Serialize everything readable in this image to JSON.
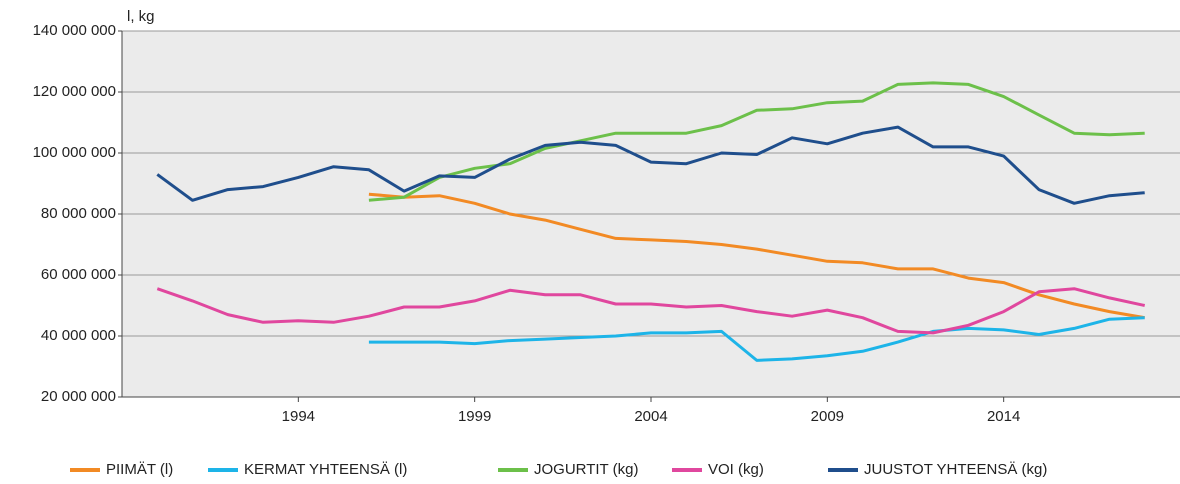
{
  "chart_data": {
    "type": "line",
    "y_axis_label": "l, kg",
    "x": [
      1990,
      1991,
      1992,
      1993,
      1994,
      1995,
      1996,
      1997,
      1998,
      1999,
      2000,
      2001,
      2002,
      2003,
      2004,
      2005,
      2006,
      2007,
      2008,
      2009,
      2010,
      2011,
      2012,
      2013,
      2014,
      2015,
      2016,
      2017,
      2018
    ],
    "xlim": [
      1989,
      2019
    ],
    "xticks": [
      1994,
      1999,
      2004,
      2009,
      2014
    ],
    "ylim": [
      20000000,
      140000000
    ],
    "yticks": [
      {
        "value": 20000000,
        "label": "20 000 000"
      },
      {
        "value": 40000000,
        "label": "40 000 000"
      },
      {
        "value": 60000000,
        "label": "60 000 000"
      },
      {
        "value": 80000000,
        "label": "80 000 000"
      },
      {
        "value": 100000000,
        "label": "100 000 000"
      },
      {
        "value": 120000000,
        "label": "120 000 000"
      },
      {
        "value": 140000000,
        "label": "140 000 000"
      }
    ],
    "grid": true,
    "legend": "bottom",
    "series": [
      {
        "name": "PIIMÄT (l)",
        "color": "#f28a24",
        "values": [
          null,
          null,
          null,
          null,
          null,
          null,
          86500000,
          85500000,
          86000000,
          83500000,
          80000000,
          78000000,
          75000000,
          72000000,
          71500000,
          71000000,
          70000000,
          68500000,
          66500000,
          64500000,
          64000000,
          62000000,
          62000000,
          59000000,
          57500000,
          53500000,
          50500000,
          48000000,
          46000000
        ]
      },
      {
        "name": "KERMAT YHTEENSÄ (l)",
        "color": "#1db4e8",
        "values": [
          null,
          null,
          null,
          null,
          null,
          null,
          38000000,
          38000000,
          38000000,
          37500000,
          38500000,
          39000000,
          39500000,
          40000000,
          41000000,
          41000000,
          41500000,
          32000000,
          32500000,
          33500000,
          35000000,
          38000000,
          41500000,
          42500000,
          42000000,
          40500000,
          42500000,
          45500000,
          46000000
        ]
      },
      {
        "name": "JOGURTIT (kg)",
        "color": "#6cc04a",
        "values": [
          null,
          null,
          null,
          null,
          null,
          null,
          84500000,
          85500000,
          92000000,
          95000000,
          96500000,
          101500000,
          104000000,
          106500000,
          106500000,
          106500000,
          109000000,
          114000000,
          114500000,
          116500000,
          117000000,
          122500000,
          123000000,
          122500000,
          118500000,
          112500000,
          106500000,
          106000000,
          106500000
        ]
      },
      {
        "name": "VOI (kg)",
        "color": "#e0479e",
        "values": [
          55500000,
          51500000,
          47000000,
          44500000,
          45000000,
          44500000,
          46500000,
          49500000,
          49500000,
          51500000,
          55000000,
          53500000,
          53500000,
          50500000,
          50500000,
          49500000,
          50000000,
          48000000,
          46500000,
          48500000,
          46000000,
          41500000,
          41000000,
          43500000,
          48000000,
          54500000,
          55500000,
          52500000,
          50000000
        ]
      },
      {
        "name": "JUUSTOT YHTEENSÄ (kg)",
        "color": "#1f4e8c",
        "values": [
          93000000,
          84500000,
          88000000,
          89000000,
          92000000,
          95500000,
          94500000,
          87500000,
          92500000,
          92000000,
          98000000,
          102500000,
          103500000,
          102500000,
          97000000,
          96500000,
          100000000,
          99500000,
          105000000,
          103000000,
          106500000,
          108500000,
          102000000,
          102000000,
          99000000,
          88000000,
          83500000,
          86000000,
          87000000
        ]
      }
    ]
  }
}
